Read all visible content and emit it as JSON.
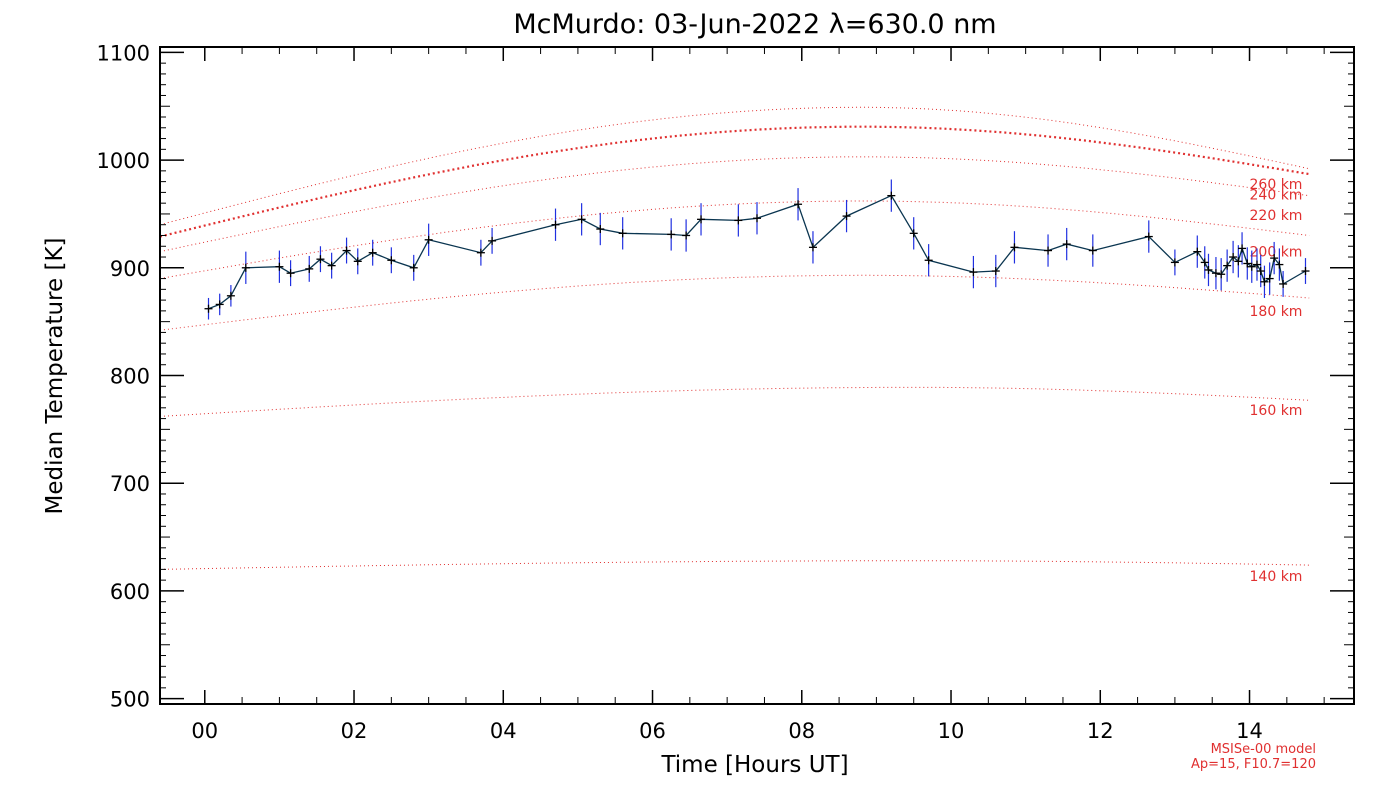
{
  "chart_data": {
    "type": "line",
    "title": "McMurdo: 03-Jun-2022 λ=630.0 nm",
    "xlabel": "Time [Hours UT]",
    "ylabel": "Median Temperature [K]",
    "xlim": [
      -0.6,
      15.4
    ],
    "ylim": [
      495,
      1105
    ],
    "x_ticks": [
      0,
      2,
      4,
      6,
      8,
      10,
      12,
      14
    ],
    "x_tick_labels": [
      "00",
      "02",
      "04",
      "06",
      "08",
      "10",
      "12",
      "14"
    ],
    "y_ticks": [
      500,
      600,
      700,
      800,
      900,
      1000,
      1100
    ],
    "y_tick_labels": [
      "500",
      "600",
      "700",
      "800",
      "900",
      "1000",
      "1100"
    ],
    "grid": false,
    "measured": {
      "color": "#0a3550",
      "error_color": "#2030e0",
      "marker_color": "#000000",
      "x": [
        0.05,
        0.2,
        0.35,
        0.55,
        1.0,
        1.15,
        1.4,
        1.55,
        1.7,
        1.9,
        2.05,
        2.25,
        2.5,
        2.8,
        3.0,
        3.7,
        3.85,
        4.7,
        5.05,
        5.3,
        5.6,
        6.25,
        6.45,
        6.65,
        7.15,
        7.4,
        7.95,
        8.15,
        8.6,
        9.2,
        9.5,
        9.7,
        10.3,
        10.6,
        10.85,
        11.3,
        11.55,
        11.9,
        12.65,
        13.0,
        13.3,
        13.4,
        13.45,
        13.55,
        13.62,
        13.7,
        13.78,
        13.85,
        13.9,
        13.97,
        14.03,
        14.1,
        14.15,
        14.2,
        14.27,
        14.33,
        14.4,
        14.45,
        14.75
      ],
      "y": [
        862,
        866,
        874,
        900,
        901,
        895,
        899,
        908,
        902,
        916,
        906,
        914,
        907,
        900,
        926,
        914,
        925,
        940,
        945,
        936,
        932,
        931,
        930,
        945,
        944,
        946,
        959,
        919,
        948,
        967,
        932,
        907,
        896,
        897,
        919,
        916,
        922,
        916,
        929,
        905,
        915,
        905,
        898,
        895,
        894,
        902,
        910,
        906,
        918,
        904,
        901,
        903,
        897,
        887,
        890,
        909,
        903,
        885,
        897
      ],
      "err": [
        10,
        10,
        10,
        15,
        15,
        12,
        12,
        12,
        12,
        12,
        12,
        12,
        12,
        12,
        15,
        12,
        12,
        15,
        15,
        15,
        15,
        15,
        15,
        15,
        15,
        15,
        15,
        15,
        15,
        15,
        15,
        15,
        15,
        15,
        15,
        15,
        15,
        15,
        15,
        12,
        15,
        15,
        15,
        15,
        15,
        15,
        15,
        15,
        15,
        15,
        15,
        15,
        15,
        15,
        15,
        15,
        15,
        12,
        12
      ]
    },
    "model": {
      "color": "#e03030",
      "labels": [
        "260 km",
        "240 km",
        "220 km",
        "200 km",
        "180 km",
        "160 km",
        "140 km"
      ],
      "curves": [
        {
          "label": "260 km",
          "start": 929,
          "peak": 1031,
          "end": 987,
          "peak_x": 8.8,
          "bold": true
        },
        {
          "label": "240 km",
          "start": 940,
          "peak": 1049,
          "end": 992,
          "peak_x": 8.8
        },
        {
          "label": "220 km",
          "start": 915,
          "peak": 1003,
          "end": 967,
          "peak_x": 8.8
        },
        {
          "label": "200 km",
          "start": 890,
          "peak": 962,
          "end": 930,
          "peak_x": 8.8
        },
        {
          "label": "180 km",
          "start": 842,
          "peak": 893,
          "end": 872,
          "peak_x": 8.8
        },
        {
          "label": "160 km",
          "start": 762,
          "peak": 789,
          "end": 777,
          "peak_x": 9.5
        },
        {
          "label": "140 km",
          "start": 620,
          "peak": 628,
          "end": 624,
          "peak_x": 9.5
        }
      ],
      "label_y": [
        978,
        968,
        949,
        915,
        860,
        768,
        614
      ],
      "label_x": 14.0
    },
    "model_note": [
      "MSISe-00 model",
      "Ap=15, F10.7=120"
    ]
  }
}
